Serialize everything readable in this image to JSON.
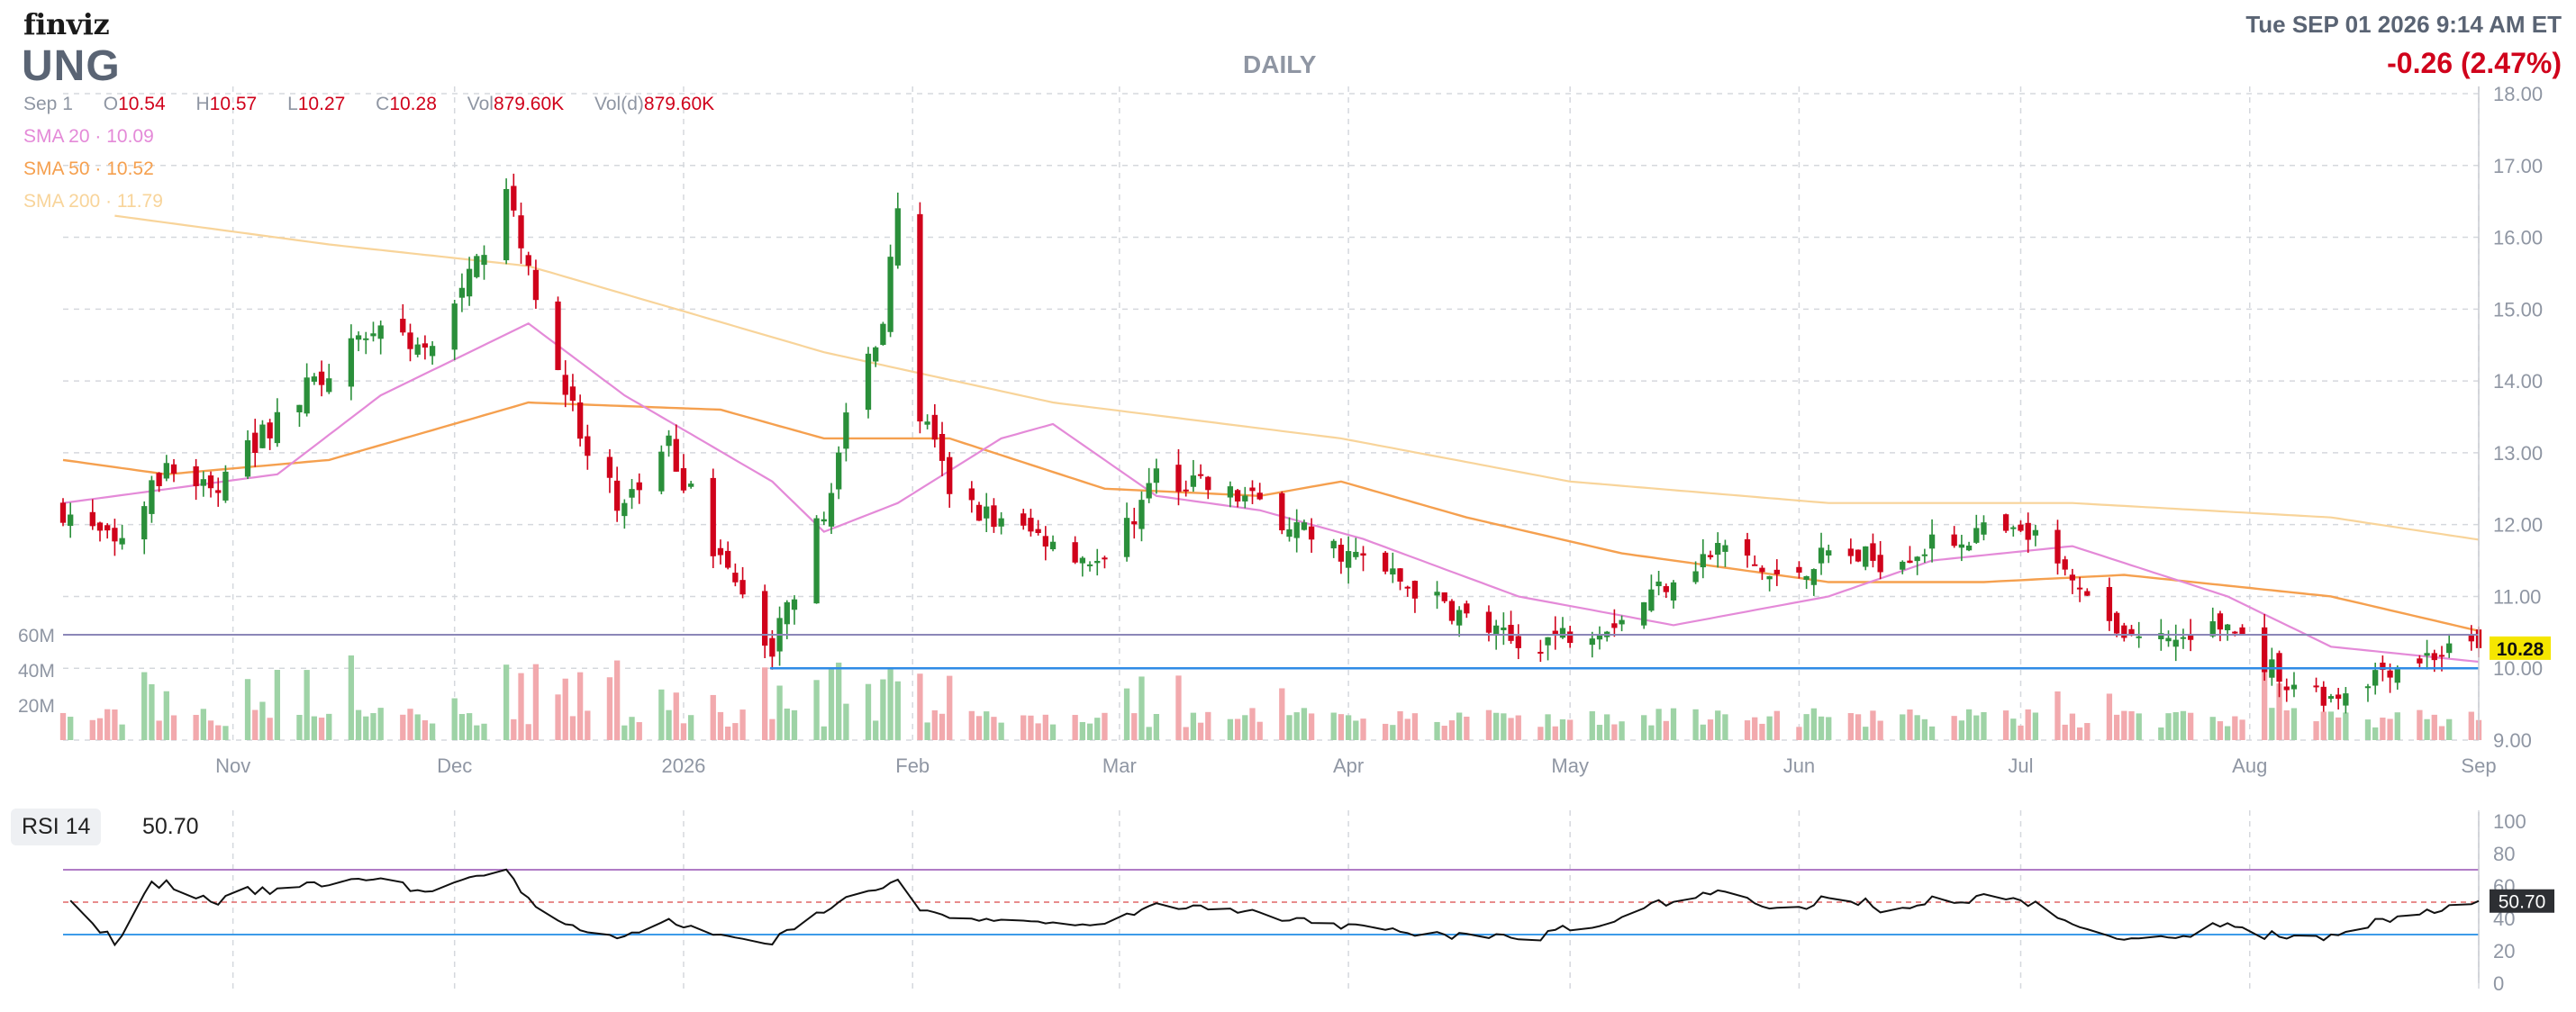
{
  "header": {
    "logo": "finviz",
    "ticker": "UNG",
    "timeframe": "DAILY",
    "datetime": "Tue SEP 01 2026 9:14 AM ET",
    "change": "-0.26 (2.47%)"
  },
  "ohlc": {
    "date": "Sep 1",
    "open_label": "O",
    "open": "10.54",
    "high_label": "H",
    "high": "10.57",
    "low_label": "L",
    "low": "10.27",
    "close_label": "C",
    "close": "10.28",
    "vol_label": "Vol",
    "vol": "879.60K",
    "vold_label": "Vol(d)",
    "vold": "879.60K"
  },
  "legend": {
    "sma20": {
      "label": "SMA 20",
      "value": "10.09",
      "color": "#e48ad8"
    },
    "sma50": {
      "label": "SMA 50",
      "value": "10.52",
      "color": "#f5a04f"
    },
    "sma200": {
      "label": "SMA 200",
      "value": "11.79",
      "color": "#f8d49a"
    }
  },
  "rsi": {
    "label": "RSI 14",
    "value": "50.70"
  },
  "colors": {
    "up": "#2a8f3a",
    "down": "#d0021b",
    "vol_up": "#9ed3a6",
    "vol_down": "#f2a9ad",
    "grid": "#d5d8dd",
    "axis_text": "#8f96a3",
    "price_tag_bg": "#f5e600",
    "blue_line": "#2f8be6",
    "purple_line": "#8b87b8"
  },
  "chart_data": {
    "type": "candlestick",
    "title": "UNG",
    "ylim": [
      9,
      18
    ],
    "yticks": [
      "18.00",
      "17.00",
      "16.00",
      "15.00",
      "14.00",
      "13.00",
      "12.00",
      "11.00",
      "10.00",
      "9.00"
    ],
    "volume_ticks": [
      "60M",
      "40M",
      "20M"
    ],
    "xticks": [
      "Nov",
      "Dec",
      "2026",
      "Feb",
      "Mar",
      "Apr",
      "May",
      "Jun",
      "Jul",
      "Aug",
      "Sep"
    ],
    "last_price": "10.28",
    "rsi_ticks": [
      "100",
      "80",
      "60",
      "40",
      "20",
      "0"
    ],
    "rsi_last": "50.70",
    "anchors": [
      {
        "date": "2025-10-09",
        "close": 12.2
      },
      {
        "date": "2025-10-16",
        "close": 11.7
      },
      {
        "date": "2025-10-23",
        "close": 12.8
      },
      {
        "date": "2025-10-30",
        "close": 12.5
      },
      {
        "date": "2025-11-07",
        "close": 13.5
      },
      {
        "date": "2025-11-14",
        "close": 14.2
      },
      {
        "date": "2025-11-21",
        "close": 14.8
      },
      {
        "date": "2025-11-28",
        "close": 14.4
      },
      {
        "date": "2025-12-04",
        "close": 15.6
      },
      {
        "date": "2025-12-08",
        "close": 16.8
      },
      {
        "date": "2025-12-11",
        "close": 15.6
      },
      {
        "date": "2025-12-15",
        "close": 14.3
      },
      {
        "date": "2025-12-19",
        "close": 12.9
      },
      {
        "date": "2025-12-24",
        "close": 12.2
      },
      {
        "date": "2025-12-30",
        "close": 13.1
      },
      {
        "date": "2026-01-06",
        "close": 11.5
      },
      {
        "date": "2026-01-13",
        "close": 10.3
      },
      {
        "date": "2026-01-20",
        "close": 12.2
      },
      {
        "date": "2026-01-23",
        "close": 13.4
      },
      {
        "date": "2026-01-28",
        "close": 14.9
      },
      {
        "date": "2026-01-30",
        "close": 16.3
      },
      {
        "date": "2026-02-02",
        "close": 13.6
      },
      {
        "date": "2026-02-06",
        "close": 12.5
      },
      {
        "date": "2026-02-13",
        "close": 12.0
      },
      {
        "date": "2026-02-20",
        "close": 11.8
      },
      {
        "date": "2026-02-27",
        "close": 11.4
      },
      {
        "date": "2026-03-06",
        "close": 12.7
      },
      {
        "date": "2026-03-13",
        "close": 12.5
      },
      {
        "date": "2026-03-20",
        "close": 12.3
      },
      {
        "date": "2026-03-27",
        "close": 11.8
      },
      {
        "date": "2026-04-03",
        "close": 11.5
      },
      {
        "date": "2026-04-10",
        "close": 11.1
      },
      {
        "date": "2026-04-17",
        "close": 10.7
      },
      {
        "date": "2026-04-24",
        "close": 10.3
      },
      {
        "date": "2026-05-01",
        "close": 10.5
      },
      {
        "date": "2026-05-08",
        "close": 10.7
      },
      {
        "date": "2026-05-15",
        "close": 11.3
      },
      {
        "date": "2026-05-22",
        "close": 11.7
      },
      {
        "date": "2026-05-29",
        "close": 11.2
      },
      {
        "date": "2026-06-05",
        "close": 11.6
      },
      {
        "date": "2026-06-12",
        "close": 11.5
      },
      {
        "date": "2026-06-19",
        "close": 11.7
      },
      {
        "date": "2026-06-26",
        "close": 11.9
      },
      {
        "date": "2026-07-03",
        "close": 11.8
      },
      {
        "date": "2026-07-08",
        "close": 11.1
      },
      {
        "date": "2026-07-15",
        "close": 10.5
      },
      {
        "date": "2026-07-22",
        "close": 10.4
      },
      {
        "date": "2026-07-29",
        "close": 10.6
      },
      {
        "date": "2026-08-05",
        "close": 9.9
      },
      {
        "date": "2026-08-12",
        "close": 9.6
      },
      {
        "date": "2026-08-19",
        "close": 10.0
      },
      {
        "date": "2026-08-26",
        "close": 10.2
      },
      {
        "date": "2026-09-01",
        "close": 10.28
      }
    ],
    "sma20": [
      {
        "date": "2025-10-09",
        "value": 12.3
      },
      {
        "date": "2025-11-07",
        "value": 12.7
      },
      {
        "date": "2025-11-21",
        "value": 13.8
      },
      {
        "date": "2025-12-11",
        "value": 14.8
      },
      {
        "date": "2025-12-24",
        "value": 13.8
      },
      {
        "date": "2026-01-13",
        "value": 12.6
      },
      {
        "date": "2026-01-20",
        "value": 11.9
      },
      {
        "date": "2026-01-30",
        "value": 12.3
      },
      {
        "date": "2026-02-13",
        "value": 13.2
      },
      {
        "date": "2026-02-20",
        "value": 13.4
      },
      {
        "date": "2026-03-06",
        "value": 12.4
      },
      {
        "date": "2026-03-20",
        "value": 12.2
      },
      {
        "date": "2026-04-03",
        "value": 11.8
      },
      {
        "date": "2026-04-24",
        "value": 11.0
      },
      {
        "date": "2026-05-15",
        "value": 10.6
      },
      {
        "date": "2026-06-05",
        "value": 11.0
      },
      {
        "date": "2026-06-19",
        "value": 11.5
      },
      {
        "date": "2026-07-08",
        "value": 11.7
      },
      {
        "date": "2026-07-29",
        "value": 11.0
      },
      {
        "date": "2026-08-12",
        "value": 10.3
      },
      {
        "date": "2026-09-01",
        "value": 10.09
      }
    ],
    "sma50": [
      {
        "date": "2025-10-09",
        "value": 12.9
      },
      {
        "date": "2025-10-23",
        "value": 12.7
      },
      {
        "date": "2025-11-14",
        "value": 12.9
      },
      {
        "date": "2025-12-11",
        "value": 13.7
      },
      {
        "date": "2026-01-06",
        "value": 13.6
      },
      {
        "date": "2026-01-20",
        "value": 13.2
      },
      {
        "date": "2026-02-06",
        "value": 13.2
      },
      {
        "date": "2026-02-27",
        "value": 12.5
      },
      {
        "date": "2026-03-20",
        "value": 12.4
      },
      {
        "date": "2026-03-31",
        "value": 12.6
      },
      {
        "date": "2026-04-17",
        "value": 12.1
      },
      {
        "date": "2026-05-08",
        "value": 11.6
      },
      {
        "date": "2026-06-05",
        "value": 11.2
      },
      {
        "date": "2026-06-26",
        "value": 11.2
      },
      {
        "date": "2026-07-15",
        "value": 11.3
      },
      {
        "date": "2026-08-12",
        "value": 11.0
      },
      {
        "date": "2026-09-01",
        "value": 10.52
      }
    ],
    "sma200": [
      {
        "date": "2025-10-16",
        "value": 16.3
      },
      {
        "date": "2025-11-14",
        "value": 15.9
      },
      {
        "date": "2025-12-11",
        "value": 15.6
      },
      {
        "date": "2026-01-20",
        "value": 14.4
      },
      {
        "date": "2026-02-20",
        "value": 13.7
      },
      {
        "date": "2026-03-31",
        "value": 13.2
      },
      {
        "date": "2026-05-01",
        "value": 12.6
      },
      {
        "date": "2026-06-05",
        "value": 12.3
      },
      {
        "date": "2026-07-08",
        "value": 12.3
      },
      {
        "date": "2026-08-12",
        "value": 12.1
      },
      {
        "date": "2026-09-01",
        "value": 11.79
      }
    ]
  }
}
